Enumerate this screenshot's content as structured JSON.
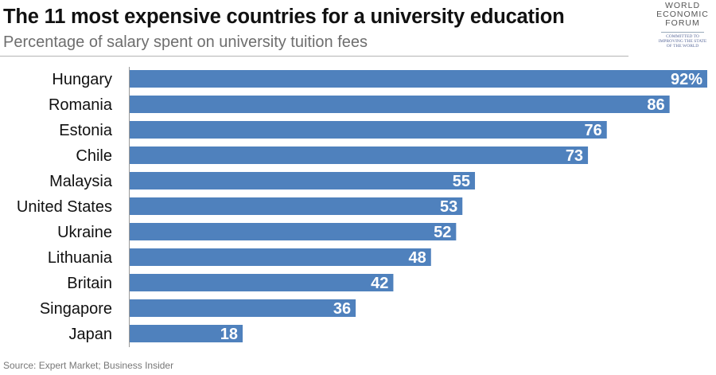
{
  "header": {
    "title": "The 11 most expensive countries for a university education",
    "subtitle": "Percentage of salary spent on university tuition fees"
  },
  "logo": {
    "line1": "WORLD",
    "line2": "ECONOMIC",
    "line3": "FORUM",
    "tag1": "COMMITTED TO",
    "tag2": "IMPROVING THE STATE",
    "tag3": "OF THE WORLD"
  },
  "source": "Source: Expert Market; Business Insider",
  "colors": {
    "bar": "#4f81bd",
    "bar_label": "#ffffff",
    "axis": "#999999",
    "category_label": "#111111"
  },
  "chart_data": {
    "type": "bar",
    "orientation": "horizontal",
    "title": "The 11 most expensive countries for a university education",
    "subtitle": "Percentage of salary spent on university tuition fees",
    "xlabel": "",
    "ylabel": "",
    "xlim": [
      0,
      92
    ],
    "grid": false,
    "legend": "none",
    "categories": [
      "Hungary",
      "Romania",
      "Estonia",
      "Chile",
      "Malaysia",
      "United States",
      "Ukraine",
      "Lithuania",
      "Britain",
      "Singapore",
      "Japan"
    ],
    "values": [
      92,
      86,
      76,
      73,
      55,
      53,
      52,
      48,
      42,
      36,
      18
    ],
    "data_labels": [
      "92%",
      "86",
      "76",
      "73",
      "55",
      "53",
      "52",
      "48",
      "42",
      "36",
      "18"
    ]
  }
}
